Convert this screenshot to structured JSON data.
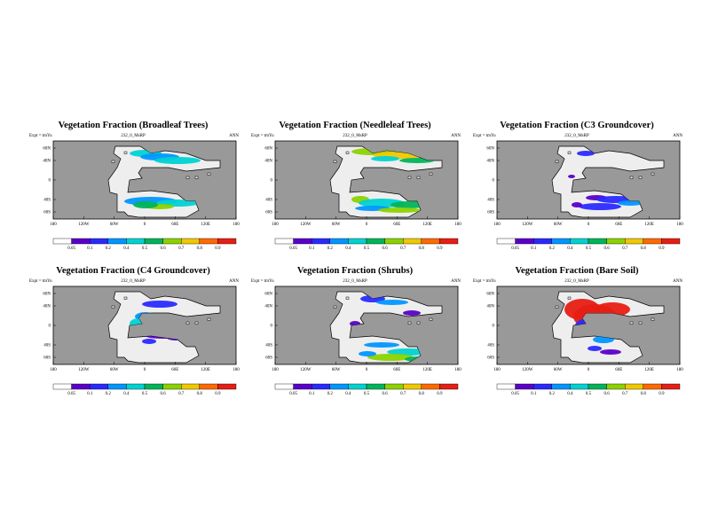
{
  "run": "232_0_MsRP",
  "season": "ANN",
  "expt": "Expt = tmYu",
  "map": {
    "ocean_color": "#999999",
    "land_color": "#eeeeee",
    "lat_labels": [
      "60N",
      "40N",
      "0",
      "40S",
      "60S"
    ],
    "lon_labels": [
      "180",
      "120W",
      "60W",
      "0",
      "60E",
      "120E",
      "180"
    ]
  },
  "colorbar": {
    "colors": [
      "#ffffff",
      "#5a00c8",
      "#2a2aff",
      "#0096ff",
      "#00d2d2",
      "#00b45a",
      "#8cd200",
      "#f0c800",
      "#ff6a00",
      "#e61e14"
    ],
    "labels": [
      "0.05",
      "0.1",
      "0.2",
      "0.4",
      "0.5",
      "0.6",
      "0.7",
      "0.8",
      "0.9"
    ]
  },
  "panels": [
    {
      "title": "Vegetation Fraction (Broadleaf Trees)",
      "expt": "Expt = tmYu",
      "run": "232_0_MsRP",
      "season": "ANN",
      "lat_labels": [
        "60N",
        "40N",
        "0",
        "40S",
        "60S"
      ],
      "lon_labels": [
        "180",
        "120W",
        "60W",
        "0",
        "60E",
        "120E",
        "180"
      ],
      "cbar_labels": [
        "0.05",
        "0.1",
        "0.2",
        "0.4",
        "0.5",
        "0.6",
        "0.7",
        "0.8",
        "0.9"
      ]
    },
    {
      "title": "Vegetation Fraction (Needleleaf Trees)",
      "expt": "Expt = tmYu",
      "run": "232_0_MsRP",
      "season": "ANN",
      "lat_labels": [
        "60N",
        "40N",
        "0",
        "40S",
        "60S"
      ],
      "lon_labels": [
        "180",
        "120W",
        "60W",
        "0",
        "60E",
        "120E",
        "180"
      ],
      "cbar_labels": [
        "0.05",
        "0.1",
        "0.2",
        "0.4",
        "0.5",
        "0.6",
        "0.7",
        "0.8",
        "0.9"
      ]
    },
    {
      "title": "Vegetation Fraction (C3 Groundcover)",
      "expt": "Expt = tmYu",
      "run": "232_0_MsRP",
      "season": "ANN",
      "lat_labels": [
        "60N",
        "40N",
        "0",
        "40S",
        "60S"
      ],
      "lon_labels": [
        "180",
        "120W",
        "60W",
        "0",
        "60E",
        "120E",
        "180"
      ],
      "cbar_labels": [
        "0.05",
        "0.1",
        "0.2",
        "0.4",
        "0.5",
        "0.6",
        "0.7",
        "0.8",
        "0.9"
      ]
    },
    {
      "title": "Vegetation Fraction (C4 Groundcover)",
      "expt": "Expt = tmYu",
      "run": "232_0_MsRP",
      "season": "ANN",
      "lat_labels": [
        "60N",
        "40N",
        "0",
        "40S",
        "60S"
      ],
      "lon_labels": [
        "180",
        "120W",
        "60W",
        "0",
        "60E",
        "120E",
        "180"
      ],
      "cbar_labels": [
        "0.05",
        "0.1",
        "0.2",
        "0.4",
        "0.5",
        "0.6",
        "0.7",
        "0.8",
        "0.9"
      ]
    },
    {
      "title": "Vegetation Fraction (Shrubs)",
      "expt": "Expt = tmYu",
      "run": "232_0_MsRP",
      "season": "ANN",
      "lat_labels": [
        "60N",
        "40N",
        "0",
        "40S",
        "60S"
      ],
      "lon_labels": [
        "180",
        "120W",
        "60W",
        "0",
        "60E",
        "120E",
        "180"
      ],
      "cbar_labels": [
        "0.05",
        "0.1",
        "0.2",
        "0.4",
        "0.5",
        "0.6",
        "0.7",
        "0.8",
        "0.9"
      ]
    },
    {
      "title": "Vegetation Fraction (Bare Soil)",
      "expt": "Expt = tmYu",
      "run": "232_0_MsRP",
      "season": "ANN",
      "lat_labels": [
        "60N",
        "40N",
        "0",
        "40S",
        "60S"
      ],
      "lon_labels": [
        "180",
        "120W",
        "60W",
        "0",
        "60E",
        "120E",
        "180"
      ],
      "cbar_labels": [
        "0.05",
        "0.1",
        "0.2",
        "0.4",
        "0.5",
        "0.6",
        "0.7",
        "0.8",
        "0.9"
      ]
    }
  ]
}
